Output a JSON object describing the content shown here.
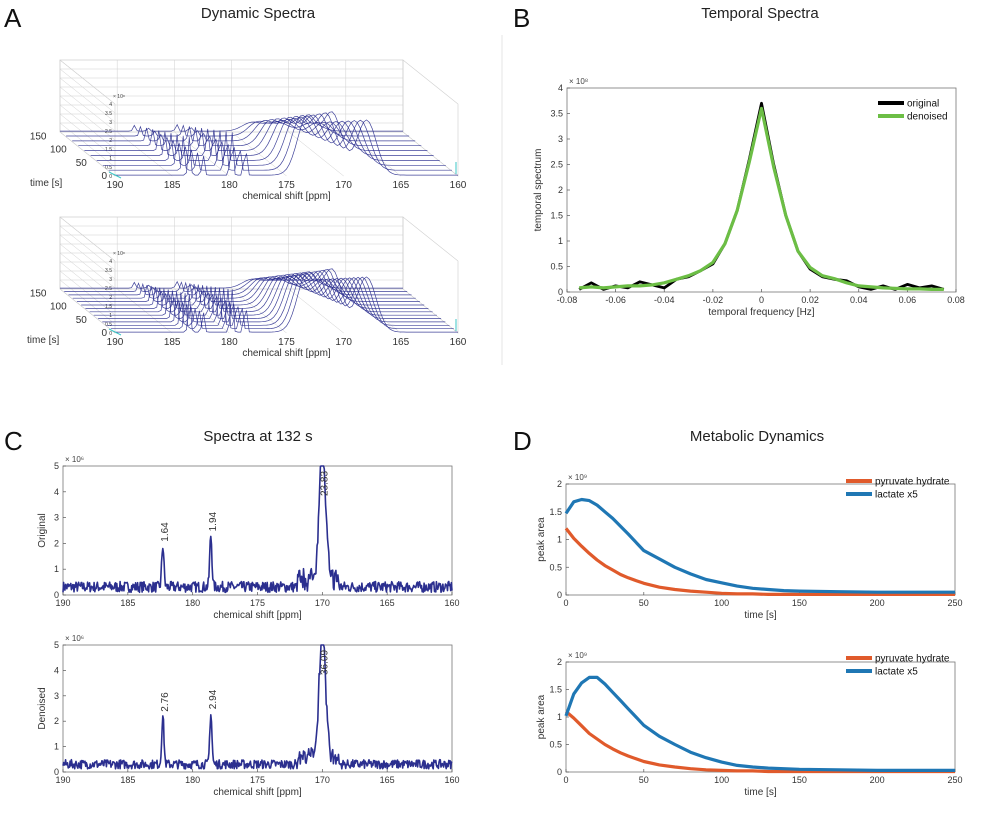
{
  "panels": {
    "A": {
      "letter": "A",
      "title": "Dynamic Spectra"
    },
    "B": {
      "letter": "B",
      "title": "Temporal Spectra"
    },
    "C": {
      "letter": "C",
      "title": "Spectra at 132 s"
    },
    "D": {
      "letter": "D",
      "title": "Metabolic Dynamics"
    }
  },
  "colors": {
    "navy": "#2b2f8f",
    "black": "#000000",
    "green": "#6cbe45",
    "orange": "#e05a2b",
    "blue": "#1f77b4"
  },
  "chart_data": [
    {
      "id": "A-top",
      "type": "waterfall",
      "title": "Dynamic Spectra",
      "xlabel": "chemical shift [ppm]",
      "ylabel": "time [s]",
      "x_ticks": [
        "190",
        "185",
        "180",
        "175",
        "170",
        "165",
        "160"
      ],
      "y_ticks": [
        "0",
        "50",
        "100",
        "150"
      ],
      "z_ticks": [
        "0",
        "0.5",
        "1",
        "1.5",
        "2",
        "2.5",
        "3",
        "3.5",
        "4"
      ],
      "z_exponent": "× 10⁸",
      "peaks_ppm": [
        183.5,
        182.3,
        179.8,
        178.6,
        173.2,
        171.0,
        168.0
      ],
      "curves": 10
    },
    {
      "id": "A-bottom",
      "type": "waterfall",
      "xlabel": "chemical shift [ppm]",
      "ylabel": "time [s]",
      "x_ticks": [
        "190",
        "185",
        "180",
        "175",
        "170",
        "165",
        "160"
      ],
      "y_ticks": [
        "0",
        "50",
        "100",
        "150"
      ],
      "z_ticks": [
        "0",
        "0.5",
        "1",
        "1.5",
        "2",
        "2.5",
        "3",
        "3.5",
        "4"
      ],
      "z_exponent": "× 10⁸",
      "peaks_ppm": [
        183.5,
        182.3,
        179.8,
        178.6,
        173.2,
        171.0,
        168.0
      ],
      "curves": 14
    },
    {
      "id": "B",
      "type": "line",
      "title": "Temporal Spectra",
      "xlabel": "temporal frequency [Hz]",
      "ylabel": "temporal spectrum",
      "xlim": [
        -0.08,
        0.08
      ],
      "ylim": [
        0,
        4
      ],
      "x_ticks": [
        "-0.08",
        "-0.06",
        "-0.04",
        "-0.02",
        "0",
        "0.02",
        "0.04",
        "0.06",
        "0.08"
      ],
      "y_ticks": [
        "0",
        "0.5",
        "1",
        "1.5",
        "2",
        "2.5",
        "3",
        "3.5",
        "4"
      ],
      "y_exponent": "× 10⁸",
      "legend": [
        "original",
        "denoised"
      ],
      "x": [
        -0.075,
        -0.07,
        -0.065,
        -0.06,
        -0.055,
        -0.05,
        -0.045,
        -0.04,
        -0.035,
        -0.03,
        -0.025,
        -0.02,
        -0.015,
        -0.01,
        -0.005,
        0,
        0.005,
        0.01,
        0.015,
        0.02,
        0.025,
        0.03,
        0.035,
        0.04,
        0.045,
        0.05,
        0.055,
        0.06,
        0.065,
        0.07,
        0.075
      ],
      "series": [
        {
          "name": "original",
          "color": "#000000",
          "values": [
            0.05,
            0.18,
            0.05,
            0.12,
            0.08,
            0.2,
            0.14,
            0.08,
            0.25,
            0.3,
            0.42,
            0.55,
            0.95,
            1.6,
            2.6,
            3.7,
            2.5,
            1.5,
            0.8,
            0.45,
            0.3,
            0.25,
            0.22,
            0.1,
            0.05,
            0.12,
            0.05,
            0.15,
            0.08,
            0.12,
            0.05
          ]
        },
        {
          "name": "denoised",
          "color": "#6cbe45",
          "values": [
            0.08,
            0.1,
            0.08,
            0.1,
            0.12,
            0.12,
            0.14,
            0.18,
            0.25,
            0.32,
            0.42,
            0.58,
            0.95,
            1.6,
            2.55,
            3.6,
            2.45,
            1.5,
            0.8,
            0.48,
            0.32,
            0.26,
            0.18,
            0.12,
            0.1,
            0.08,
            0.07,
            0.06,
            0.06,
            0.05,
            0.05
          ]
        }
      ]
    },
    {
      "id": "C-top",
      "type": "line",
      "title": "Spectra at 132 s",
      "xlabel": "chemical shift [ppm]",
      "ylabel": "Original",
      "xlim": [
        190,
        160
      ],
      "ylim": [
        0,
        5
      ],
      "x_ticks": [
        "190",
        "185",
        "180",
        "175",
        "170",
        "165",
        "160"
      ],
      "y_ticks": [
        "0",
        "1",
        "2",
        "3",
        "4",
        "5"
      ],
      "y_exponent": "× 10⁶",
      "noise_level": 0.35,
      "peaks": [
        {
          "ppm": 182.3,
          "height": 1.6,
          "label": "1.64"
        },
        {
          "ppm": 178.6,
          "height": 2.0,
          "label": "1.94"
        },
        {
          "ppm": 170.0,
          "height": 5.0,
          "label": "23.83"
        }
      ]
    },
    {
      "id": "C-bottom",
      "type": "line",
      "xlabel": "chemical shift [ppm]",
      "ylabel": "Denoised",
      "xlim": [
        190,
        160
      ],
      "ylim": [
        0,
        5
      ],
      "x_ticks": [
        "190",
        "185",
        "180",
        "175",
        "170",
        "165",
        "160"
      ],
      "y_ticks": [
        "0",
        "1",
        "2",
        "3",
        "4",
        "5"
      ],
      "y_exponent": "× 10⁶",
      "noise_level": 0.3,
      "peaks": [
        {
          "ppm": 182.3,
          "height": 1.9,
          "label": "2.76"
        },
        {
          "ppm": 178.6,
          "height": 2.0,
          "label": "2.94"
        },
        {
          "ppm": 170.0,
          "height": 5.0,
          "label": "36.09"
        }
      ]
    },
    {
      "id": "D-top",
      "type": "line",
      "title": "Metabolic Dynamics",
      "xlabel": "time [s]",
      "ylabel": "peak area",
      "xlim": [
        0,
        250
      ],
      "ylim": [
        0,
        2
      ],
      "x_ticks": [
        "0",
        "50",
        "100",
        "150",
        "200",
        "250"
      ],
      "y_ticks": [
        "0",
        "0.5",
        "1",
        "1.5",
        "2"
      ],
      "y_exponent": "× 10⁹",
      "legend": [
        "pyruvate hydrate",
        "lactate x5"
      ],
      "x": [
        0,
        5,
        10,
        15,
        20,
        25,
        30,
        35,
        40,
        45,
        50,
        60,
        70,
        80,
        90,
        100,
        110,
        120,
        130,
        140,
        150,
        175,
        200,
        225,
        250
      ],
      "series": [
        {
          "name": "pyruvate hydrate",
          "color": "#e05a2b",
          "values": [
            1.2,
            1.02,
            0.88,
            0.75,
            0.63,
            0.53,
            0.45,
            0.37,
            0.31,
            0.26,
            0.21,
            0.14,
            0.1,
            0.07,
            0.05,
            0.03,
            0.02,
            0.02,
            0.01,
            0.01,
            0.01,
            0.01,
            0.01,
            0.01,
            0.01
          ]
        },
        {
          "name": "lactate x5",
          "color": "#1f77b4",
          "values": [
            1.47,
            1.68,
            1.72,
            1.7,
            1.62,
            1.5,
            1.38,
            1.24,
            1.1,
            0.95,
            0.8,
            0.65,
            0.5,
            0.38,
            0.28,
            0.22,
            0.16,
            0.12,
            0.1,
            0.08,
            0.07,
            0.06,
            0.05,
            0.05,
            0.05
          ]
        }
      ]
    },
    {
      "id": "D-bottom",
      "type": "line",
      "xlabel": "time [s]",
      "ylabel": "peak area",
      "xlim": [
        0,
        250
      ],
      "ylim": [
        0,
        2
      ],
      "x_ticks": [
        "0",
        "50",
        "100",
        "150",
        "200",
        "250"
      ],
      "y_ticks": [
        "0",
        "0.5",
        "1",
        "1.5",
        "2"
      ],
      "y_exponent": "× 10⁹",
      "legend": [
        "pyruvate hydrate",
        "lactate x5"
      ],
      "x": [
        0,
        5,
        10,
        15,
        20,
        25,
        30,
        35,
        40,
        45,
        50,
        60,
        70,
        80,
        90,
        100,
        110,
        120,
        130,
        140,
        150,
        175,
        200,
        225,
        250
      ],
      "series": [
        {
          "name": "pyruvate hydrate",
          "color": "#e05a2b",
          "values": [
            1.1,
            0.98,
            0.84,
            0.7,
            0.6,
            0.5,
            0.42,
            0.35,
            0.29,
            0.24,
            0.19,
            0.13,
            0.09,
            0.06,
            0.04,
            0.03,
            0.02,
            0.02,
            0.01,
            0.01,
            0.01,
            0.01,
            0.01,
            0.01,
            0.01
          ]
        },
        {
          "name": "lactate x5",
          "color": "#1f77b4",
          "values": [
            1.02,
            1.42,
            1.62,
            1.72,
            1.72,
            1.6,
            1.45,
            1.3,
            1.15,
            1.0,
            0.85,
            0.65,
            0.5,
            0.36,
            0.26,
            0.18,
            0.12,
            0.09,
            0.07,
            0.06,
            0.05,
            0.04,
            0.03,
            0.03,
            0.03
          ]
        }
      ]
    }
  ]
}
